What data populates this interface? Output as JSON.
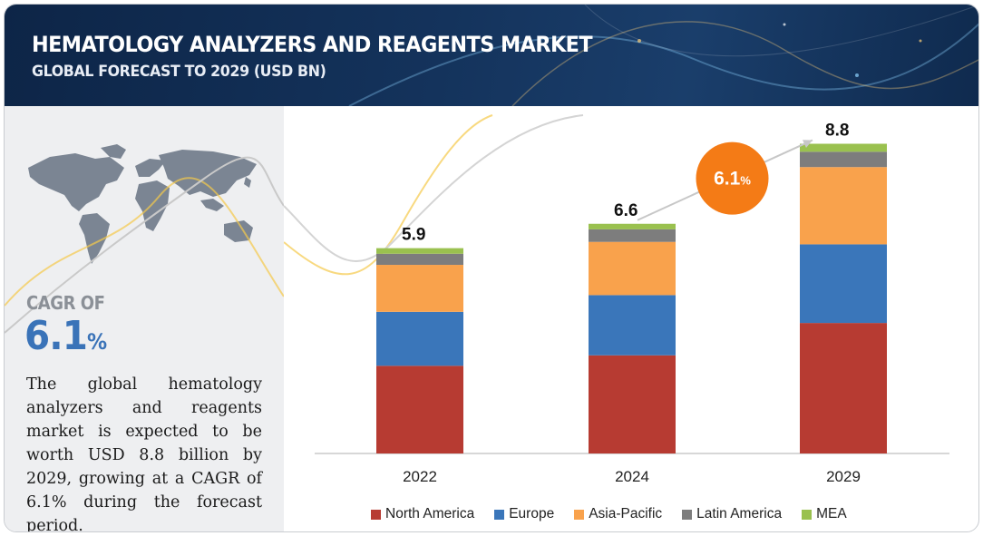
{
  "header": {
    "title": "HEMATOLOGY ANALYZERS AND REAGENTS MARKET",
    "subtitle": "GLOBAL FORECAST TO 2029 (USD BN)"
  },
  "left_panel": {
    "cagr_label": "CAGR OF",
    "cagr_value": "6.1",
    "cagr_unit": "%",
    "description": "The global hematology analyzers and reagents market is expected to be worth USD 8.8 billion by 2029, growing at a CAGR of 6.1% during the forecast period."
  },
  "chart_data": {
    "type": "bar",
    "stacked": true,
    "categories": [
      "2022",
      "2024",
      "2029"
    ],
    "totals": [
      "5.9",
      "6.6",
      "8.8"
    ],
    "series": [
      {
        "name": "North America",
        "color": "#b73b32",
        "values": [
          2.52,
          2.82,
          3.75
        ]
      },
      {
        "name": "Europe",
        "color": "#3a76ba",
        "values": [
          1.55,
          1.73,
          2.26
        ]
      },
      {
        "name": "Asia-Pacific",
        "color": "#f9a24c",
        "values": [
          1.35,
          1.53,
          2.22
        ]
      },
      {
        "name": "Latin America",
        "color": "#7d7d7d",
        "values": [
          0.32,
          0.36,
          0.44
        ]
      },
      {
        "name": "MEA",
        "color": "#9ac14f",
        "values": [
          0.16,
          0.16,
          0.23
        ]
      }
    ],
    "annotation": {
      "text": "6.1",
      "unit": "%",
      "color": "#f47b16"
    },
    "ylim": [
      0,
      9.2
    ],
    "grid": false,
    "legend": "bottom"
  }
}
